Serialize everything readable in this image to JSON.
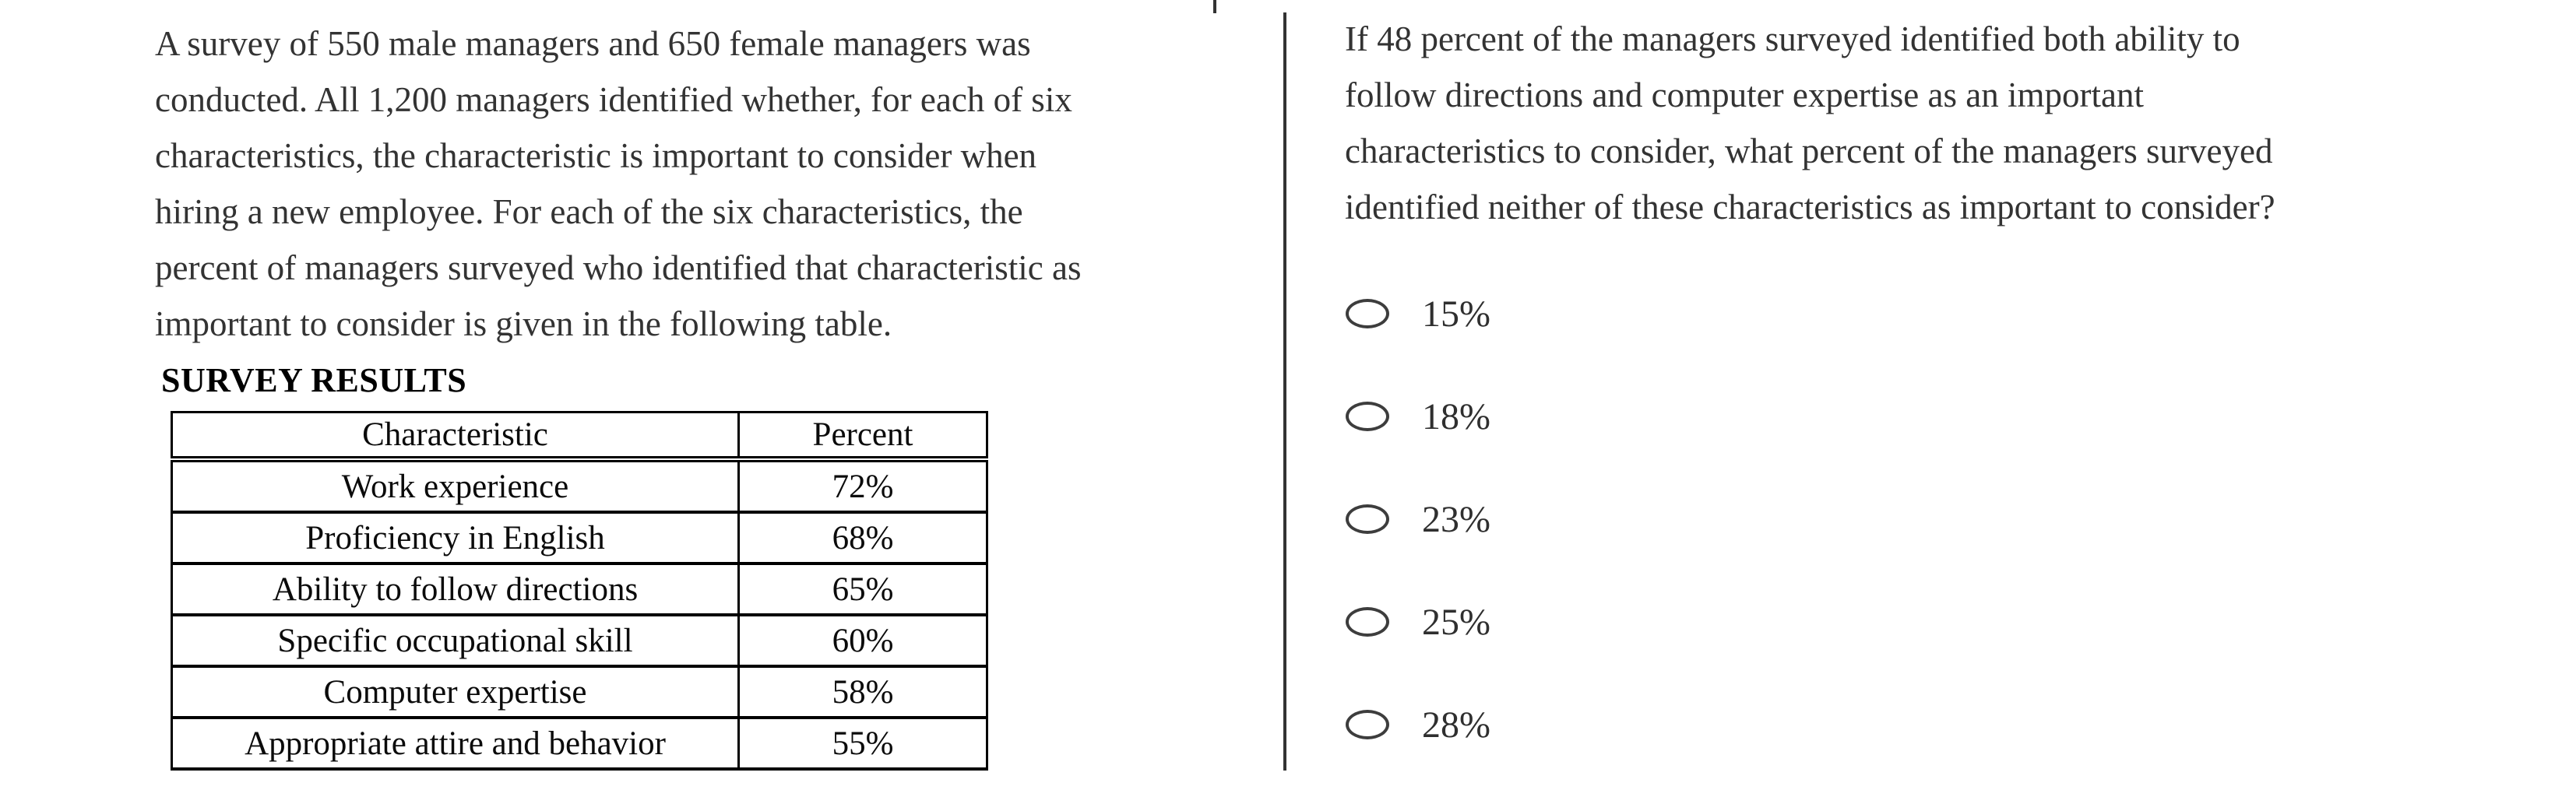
{
  "decorations": {
    "top_tick_color": "#333333",
    "divider_color": "#333333"
  },
  "left_panel": {
    "paragraph_lines": [
      "A survey of 550 male managers and 650 female managers was",
      "conducted. All 1,200 managers identified whether, for each of six",
      "characteristics, the characteristic is important to consider when",
      "hiring a new employee. For each of the six characteristics, the",
      "percent of managers surveyed who identified that characteristic as",
      "important to consider is given in the following table."
    ],
    "table_title": "SURVEY RESULTS",
    "table": {
      "headers": [
        "Characteristic",
        "Percent"
      ],
      "rows": [
        [
          "Work experience",
          "72%"
        ],
        [
          "Proficiency in English",
          "68%"
        ],
        [
          "Ability to follow directions",
          "65%"
        ],
        [
          "Specific occupational skill",
          "60%"
        ],
        [
          "Computer expertise",
          "58%"
        ],
        [
          "Appropriate attire and behavior",
          "55%"
        ]
      ]
    }
  },
  "right_panel": {
    "question_lines": [
      "If 48 percent of the managers surveyed identified both ability to",
      "follow directions and computer expertise as an important",
      "characteristics to consider, what percent of the managers surveyed",
      "identified neither of these characteristics as important to consider?"
    ],
    "options": [
      {
        "label": "15%"
      },
      {
        "label": "18%"
      },
      {
        "label": "23%"
      },
      {
        "label": "25%"
      },
      {
        "label": "28%"
      }
    ]
  },
  "colors": {
    "page_background": "#ffffff",
    "passage_text": "#333333",
    "table_text": "#0b0b0b",
    "table_border": "#000000",
    "radio_outline": "#3d3d3d"
  }
}
